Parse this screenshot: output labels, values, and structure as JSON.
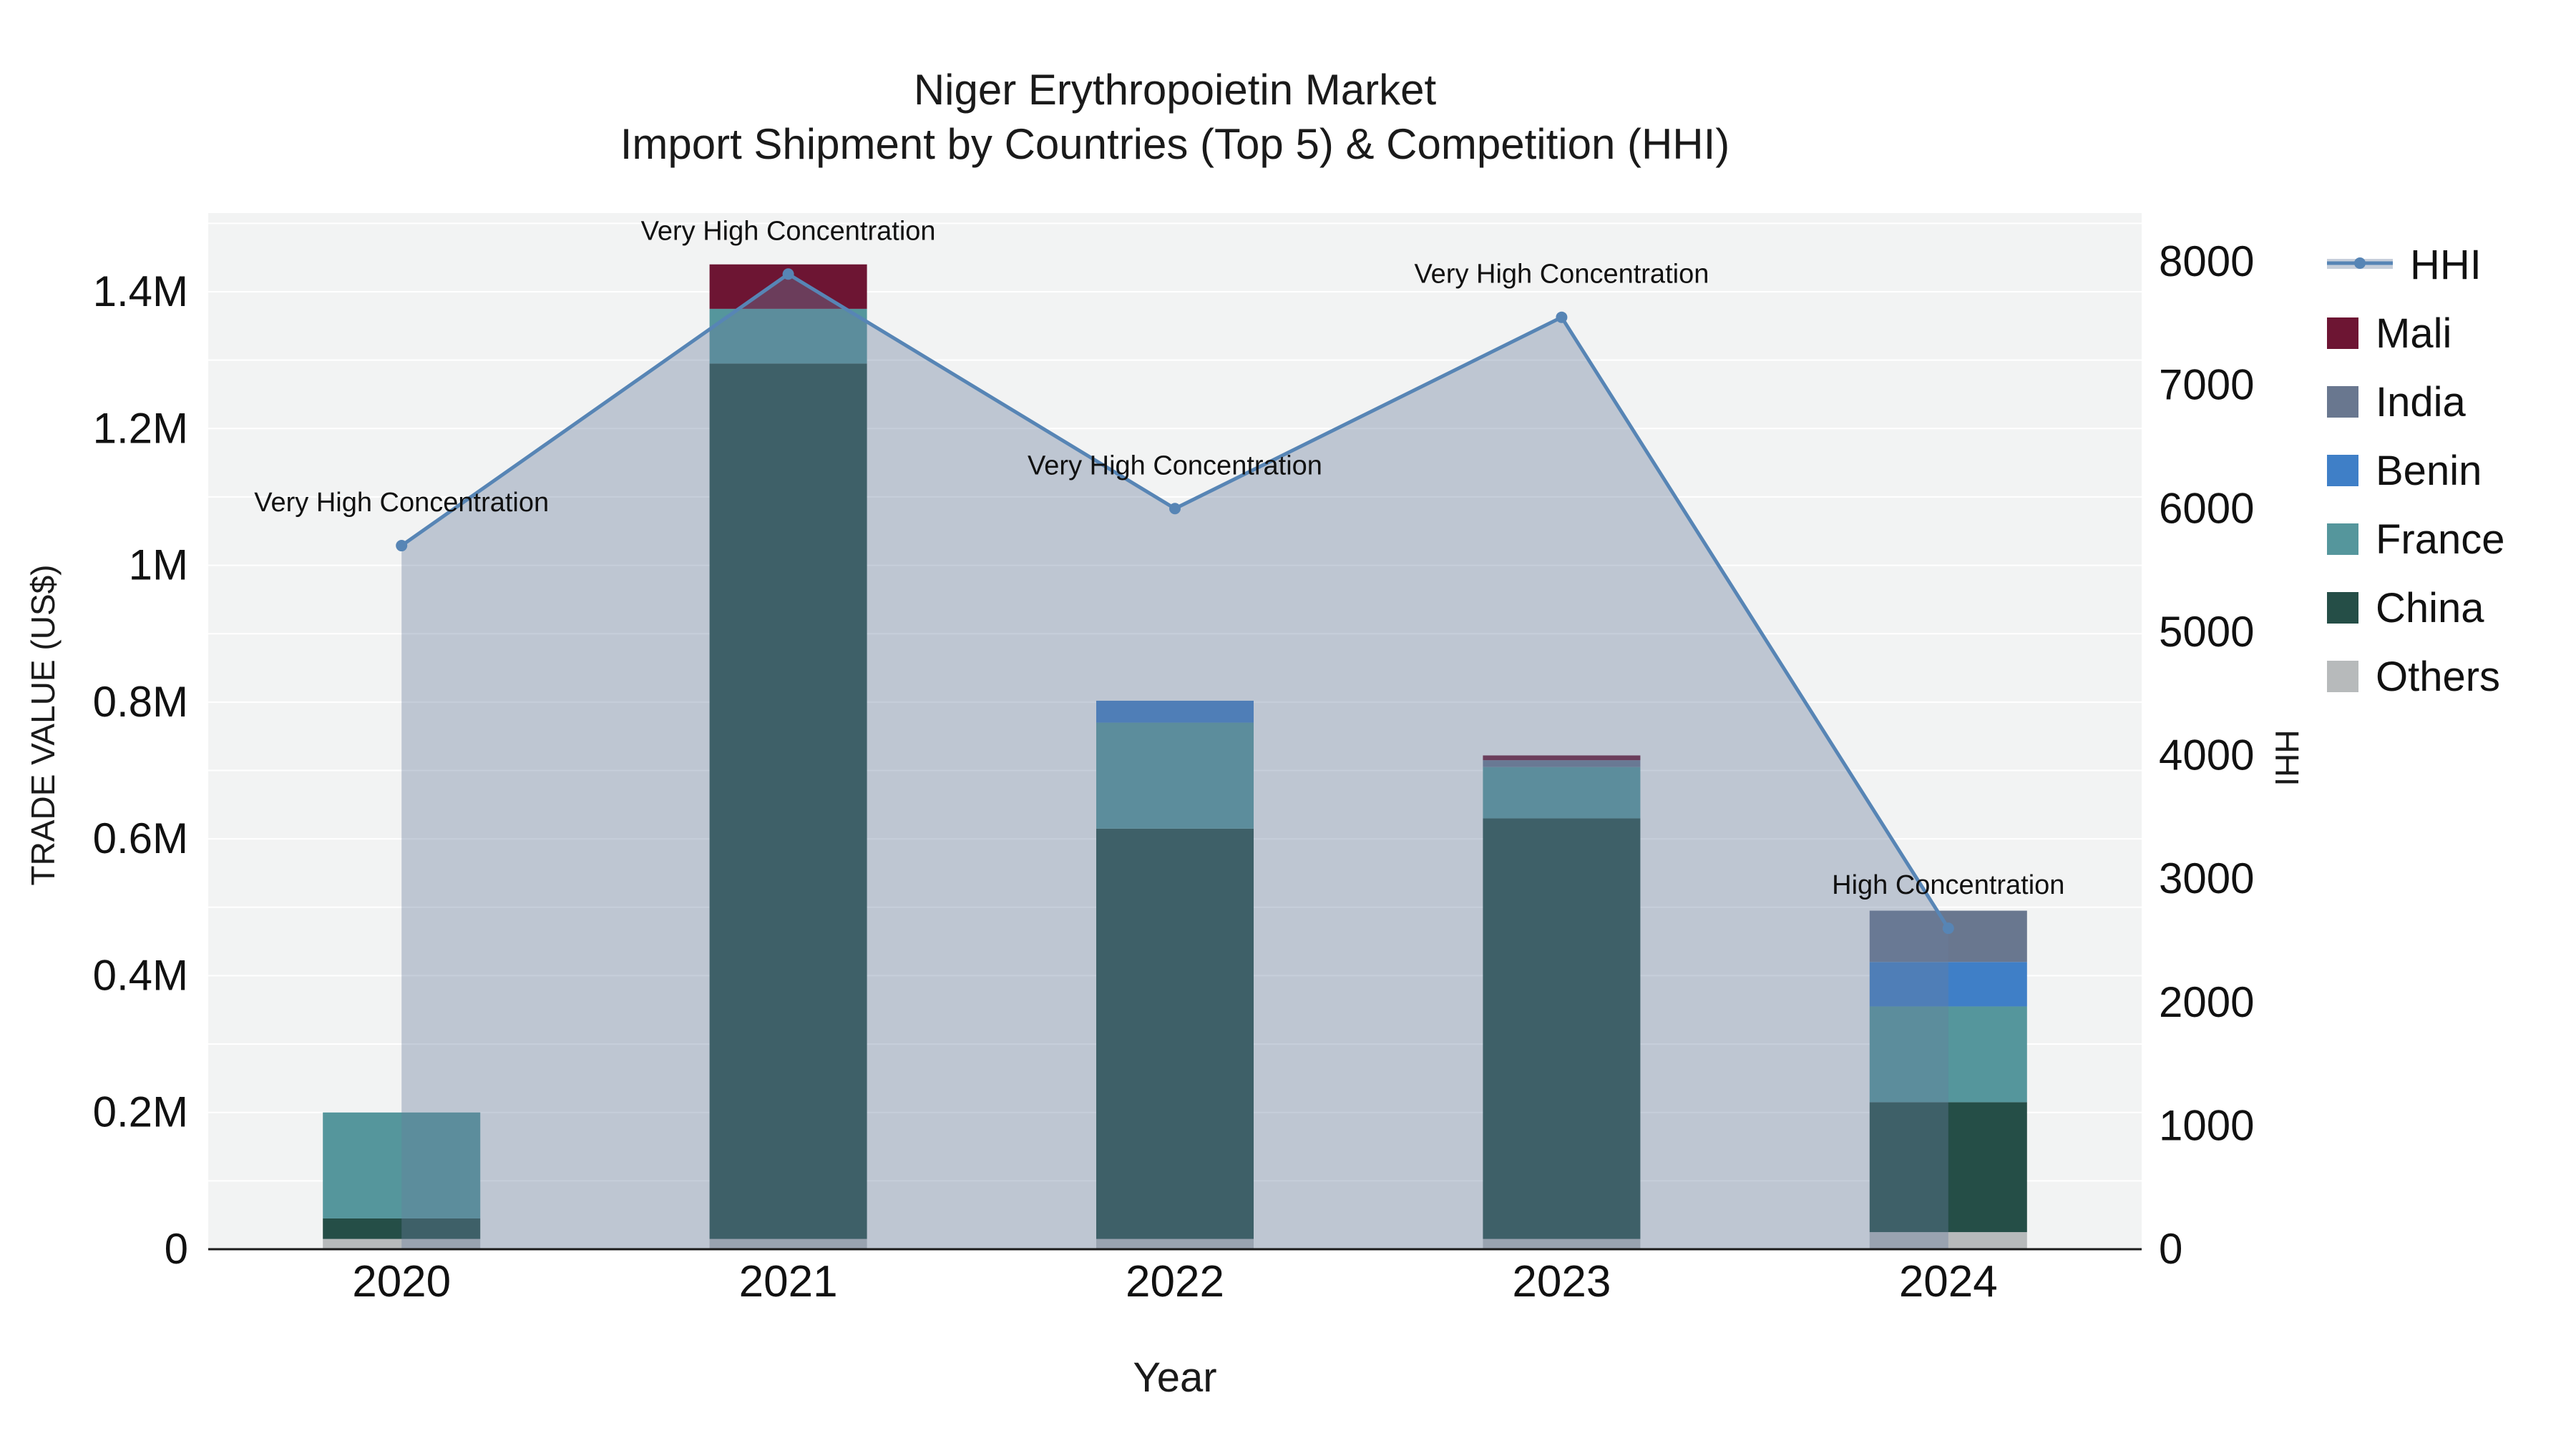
{
  "title": {
    "line1": "Niger Erythropoietin Market",
    "line2": "Import Shipment by Countries (Top 5) & Competition (HHI)"
  },
  "axes": {
    "x_label": "Year",
    "y_left_label": "TRADE VALUE (US$)",
    "y_right_label": "HHI"
  },
  "legend": {
    "items": [
      {
        "label": "HHI",
        "type": "line",
        "color": "#5785b5"
      },
      {
        "label": "Mali",
        "type": "swatch",
        "color": "#6d1533"
      },
      {
        "label": "India",
        "type": "swatch",
        "color": "#69778f"
      },
      {
        "label": "Benin",
        "type": "swatch",
        "color": "#3f7fc7"
      },
      {
        "label": "France",
        "type": "swatch",
        "color": "#55969c"
      },
      {
        "label": "China",
        "type": "swatch",
        "color": "#254e47"
      },
      {
        "label": "Others",
        "type": "swatch",
        "color": "#b7babb"
      }
    ]
  },
  "chart_data": {
    "type": "bar",
    "subtype": "stacked-bar-with-line",
    "title": "Niger Erythropoietin Market Import Shipment by Countries (Top 5) & Competition (HHI)",
    "xlabel": "Year",
    "ylabel_left": "TRADE VALUE (US$)",
    "ylabel_right": "HHI",
    "categories": [
      "2020",
      "2021",
      "2022",
      "2023",
      "2024"
    ],
    "bar_series": [
      {
        "name": "Others",
        "color": "#b7babb",
        "values": [
          15000,
          15000,
          15000,
          15000,
          25000
        ]
      },
      {
        "name": "China",
        "color": "#254e47",
        "values": [
          30000,
          1280000,
          600000,
          615000,
          190000
        ]
      },
      {
        "name": "France",
        "color": "#55969c",
        "values": [
          155000,
          80000,
          155000,
          75000,
          140000
        ]
      },
      {
        "name": "Benin",
        "color": "#3f7fc7",
        "values": [
          0,
          0,
          32000,
          0,
          65000
        ]
      },
      {
        "name": "India",
        "color": "#69778f",
        "values": [
          0,
          0,
          0,
          10000,
          75000
        ]
      },
      {
        "name": "Mali",
        "color": "#6d1533",
        "values": [
          0,
          65000,
          0,
          7000,
          0
        ]
      }
    ],
    "bar_totals": [
      200000,
      1440000,
      802000,
      722000,
      495000
    ],
    "line_series": {
      "name": "HHI",
      "color": "#5785b5",
      "area_color": "rgba(104,126,158,0.38)",
      "values": [
        5700,
        7900,
        6000,
        7550,
        2600
      ]
    },
    "annotations": [
      "Very High Concentration",
      "Very High Concentration",
      "Very High Concentration",
      "Very High Concentration",
      "High Concentration"
    ],
    "y_left_axis": {
      "ticks": [
        0,
        200000,
        400000,
        600000,
        800000,
        1000000,
        1200000,
        1400000
      ],
      "tick_labels": [
        "0",
        "0.2M",
        "0.4M",
        "0.6M",
        "0.8M",
        "1M",
        "1.2M",
        "1.4M"
      ],
      "range": [
        0,
        1515000
      ],
      "grid": true
    },
    "y_right_axis": {
      "ticks": [
        0,
        1000,
        2000,
        3000,
        4000,
        5000,
        6000,
        7000,
        8000
      ],
      "tick_labels": [
        "0",
        "1000",
        "2000",
        "3000",
        "4000",
        "5000",
        "6000",
        "7000",
        "8000"
      ],
      "range": [
        0,
        8394
      ],
      "grid": false
    },
    "plot_background": "#f2f3f3",
    "legend_position": "right-outside"
  }
}
